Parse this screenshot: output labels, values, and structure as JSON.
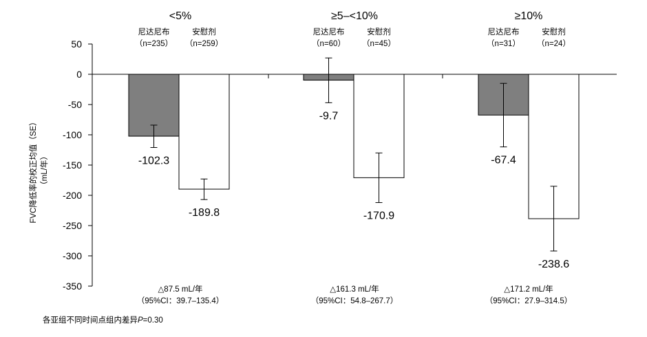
{
  "chart_data": {
    "type": "bar",
    "ylabel_line1": "FVC降低率的校正均值（SE）",
    "ylabel_line2": "（mL/年）",
    "ylim": [
      -350,
      50
    ],
    "yticks": [
      50,
      0,
      -50,
      -100,
      -150,
      -200,
      -250,
      -300,
      -350
    ],
    "grid": false,
    "bar_colors": {
      "nintedanib": "#7f7f7f",
      "placebo": "#ffffff"
    },
    "groups": [
      {
        "label": "<5%",
        "arms": [
          {
            "name": "尼达尼布",
            "n": "（n=235）",
            "value": -102.3,
            "value_label": "-102.3",
            "se_low": -121,
            "se_high": -84
          },
          {
            "name": "安慰剂",
            "n": "（n=259）",
            "value": -189.8,
            "value_label": "-189.8",
            "se_low": -207,
            "se_high": -173
          }
        ],
        "diff_line1": "△87.5 mL/年",
        "diff_line2": "（95%CI：39.7–135.4）"
      },
      {
        "label": "≥5–<10%",
        "arms": [
          {
            "name": "尼达尼布",
            "n": "（n=60）",
            "value": -9.7,
            "value_label": "-9.7",
            "se_low": -47,
            "se_high": 27
          },
          {
            "name": "安慰剂",
            "n": "（n=45）",
            "value": -170.9,
            "value_label": "-170.9",
            "se_low": -212,
            "se_high": -130
          }
        ],
        "diff_line1": "△161.3 mL/年",
        "diff_line2": "（95%CI：54.8–267.7）"
      },
      {
        "label": "≥10%",
        "arms": [
          {
            "name": "尼达尼布",
            "n": "（n=31）",
            "value": -67.4,
            "value_label": "-67.4",
            "se_low": -120,
            "se_high": -15
          },
          {
            "name": "安慰剂",
            "n": "（n=24）",
            "value": -238.6,
            "value_label": "-238.6",
            "se_low": -292,
            "se_high": -185
          }
        ],
        "diff_line1": "△171.2 mL/年",
        "diff_line2": "（95%CI：27.9–314.5）"
      }
    ],
    "footnote": "各亚组不同时间点组内差异P=0.30"
  }
}
